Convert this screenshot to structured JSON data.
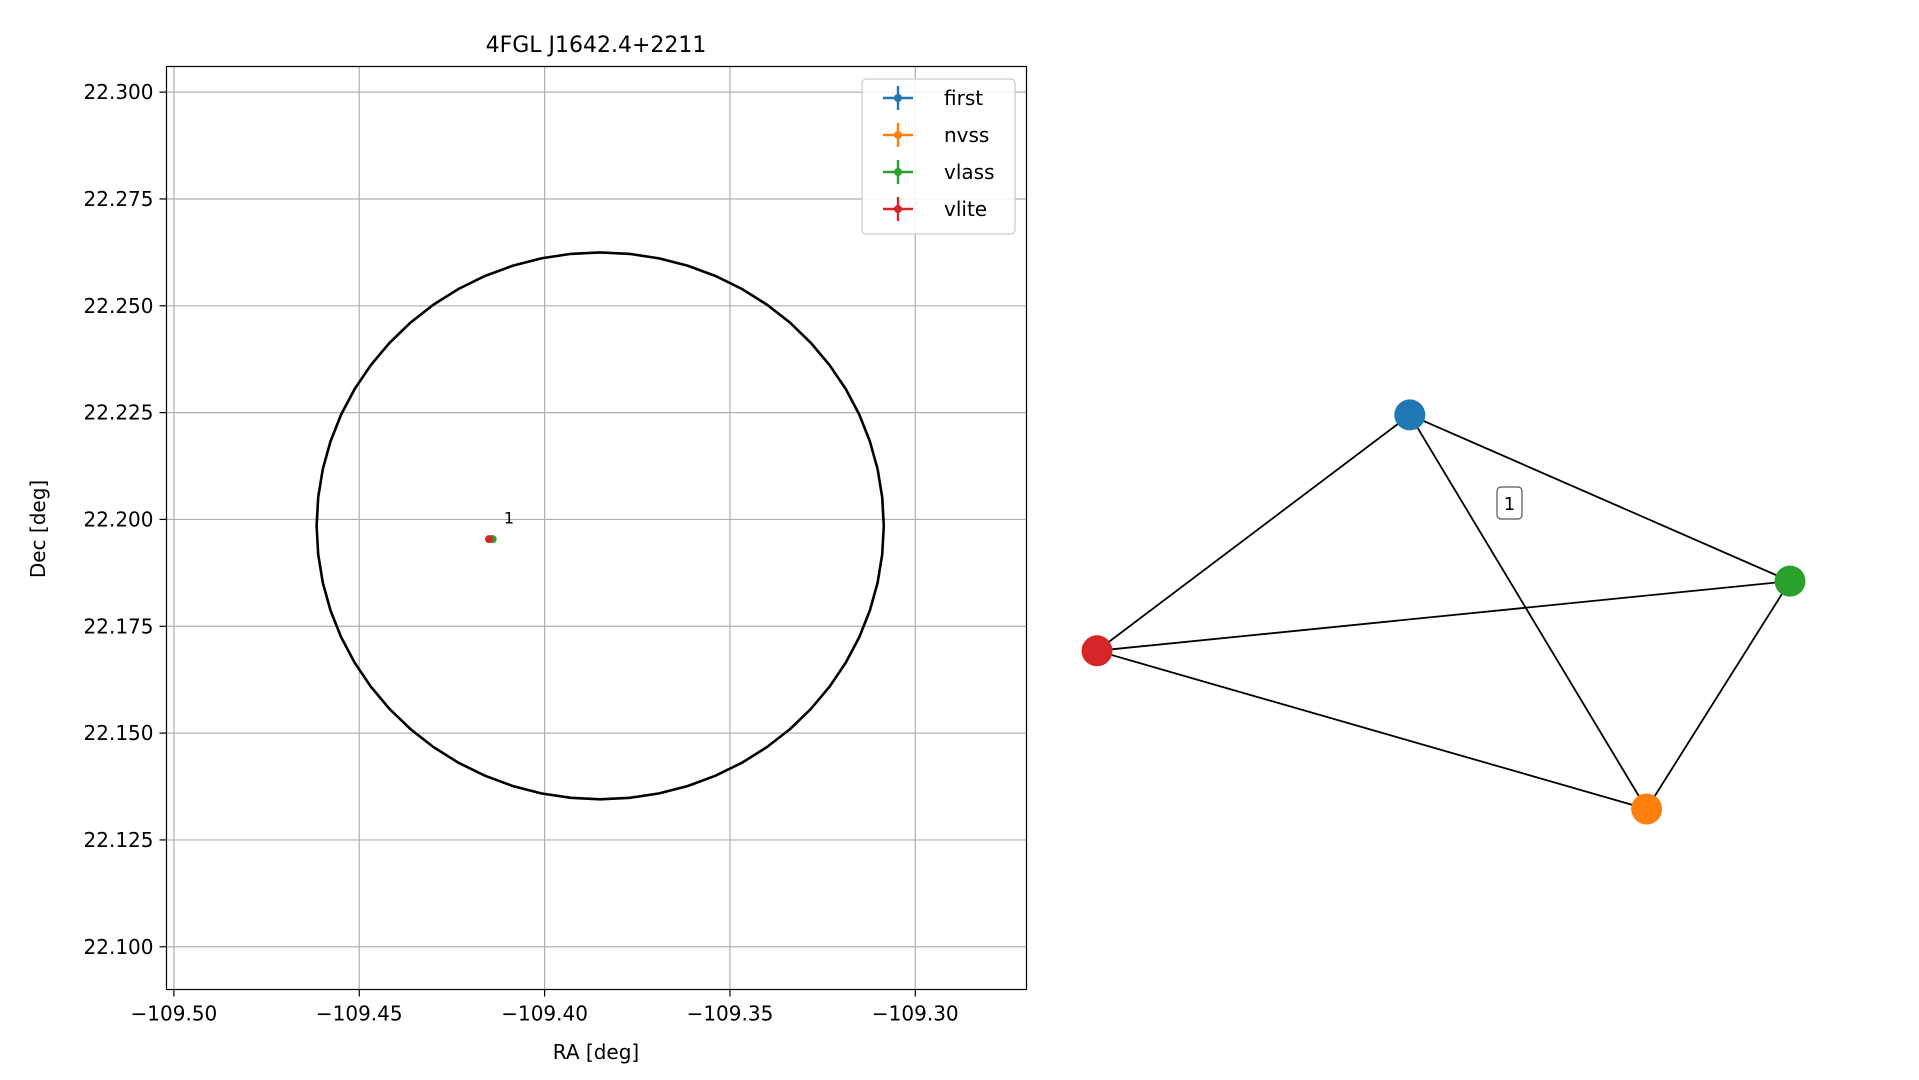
{
  "chart_data": [
    {
      "type": "scatter",
      "title": "4FGL J1642.4+2211",
      "xlabel": "RA [deg]",
      "ylabel": "Dec [deg]",
      "xlim": [
        -109.502,
        -109.27
      ],
      "ylim": [
        22.09,
        22.306
      ],
      "xticks": [
        -109.5,
        -109.45,
        -109.4,
        -109.35,
        -109.3
      ],
      "xtick_labels": [
        "−109.50",
        "−109.45",
        "−109.40",
        "−109.35",
        "−109.30"
      ],
      "yticks": [
        22.1,
        22.125,
        22.15,
        22.175,
        22.2,
        22.225,
        22.25,
        22.275,
        22.3
      ],
      "ytick_labels": [
        "22.100",
        "22.125",
        "22.150",
        "22.175",
        "22.200",
        "22.225",
        "22.250",
        "22.275",
        "22.300"
      ],
      "grid": true,
      "legend_placement": "top-right",
      "series": [
        {
          "name": "first",
          "color": "#1f77b4",
          "x": [
            -109.4145
          ],
          "y": [
            22.1954
          ]
        },
        {
          "name": "nvss",
          "color": "#ff7f0e",
          "x": [
            -109.4145
          ],
          "y": [
            22.1954
          ]
        },
        {
          "name": "vlass",
          "color": "#2ca02c",
          "x": [
            -109.414
          ],
          "y": [
            22.1954
          ]
        },
        {
          "name": "vlite",
          "color": "#d62728",
          "x": [
            -109.415
          ],
          "y": [
            22.1954
          ]
        }
      ],
      "annotations": [
        {
          "text": "1",
          "x": -109.411,
          "y": 22.199
        }
      ],
      "ellipse": {
        "center_x": -109.385,
        "center_y": 22.1985,
        "semi_axis_ra": 0.0765,
        "semi_axis_dec": 0.064,
        "color": "#000000"
      }
    },
    {
      "type": "network",
      "nodes": [
        {
          "name": "first",
          "color": "#1f77b4",
          "x": 0.4514,
          "y": 0.6771
        },
        {
          "name": "nvss",
          "color": "#ff7f0e",
          "x": 0.7931,
          "y": 0.0
        },
        {
          "name": "vlass",
          "color": "#2ca02c",
          "x": 1.0,
          "y": 0.3915
        },
        {
          "name": "vlite",
          "color": "#d62728",
          "x": 0.0,
          "y": 0.2718
        }
      ],
      "edges": [
        [
          "first",
          "vlite"
        ],
        [
          "first",
          "vlass"
        ],
        [
          "first",
          "nvss"
        ],
        [
          "vlite",
          "vlass"
        ],
        [
          "vlite",
          "nvss"
        ],
        [
          "vlass",
          "nvss"
        ]
      ],
      "edge_label": "1"
    }
  ]
}
